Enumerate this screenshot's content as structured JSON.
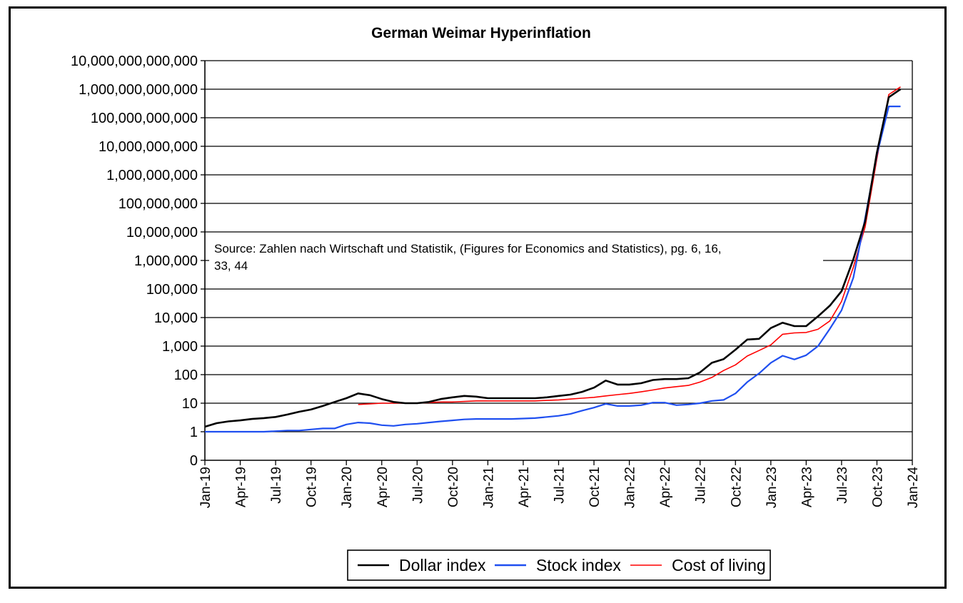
{
  "chart_data": {
    "type": "line",
    "title": "German Weimar Hyperinflation",
    "xlabel": "",
    "ylabel": "",
    "yscale": "log",
    "ylim": [
      0.1,
      10000000000000
    ],
    "xlim": [
      "1919-01",
      "1924-01"
    ],
    "grid": "horizontal",
    "legend_position": "bottom",
    "y_tick_labels": [
      {
        "value": 0.1,
        "label": "0"
      },
      {
        "value": 1,
        "label": "1"
      },
      {
        "value": 10,
        "label": "10"
      },
      {
        "value": 100,
        "label": "100"
      },
      {
        "value": 1000,
        "label": "1,000"
      },
      {
        "value": 10000,
        "label": "10,000"
      },
      {
        "value": 100000,
        "label": "100,000"
      },
      {
        "value": 1000000,
        "label": "1,000,000"
      },
      {
        "value": 10000000,
        "label": "10,000,000"
      },
      {
        "value": 100000000,
        "label": "100,000,000"
      },
      {
        "value": 1000000000,
        "label": "1,000,000,000"
      },
      {
        "value": 10000000000,
        "label": "10,000,000,000"
      },
      {
        "value": 100000000000,
        "label": "100,000,000,000"
      },
      {
        "value": 1000000000000,
        "label": "1,000,000,000,000"
      },
      {
        "value": 10000000000000,
        "label": "10,000,000,000,000"
      }
    ],
    "x_tick_labels": [
      {
        "value": "1919-01",
        "label": "Jan-19"
      },
      {
        "value": "1919-04",
        "label": "Apr-19"
      },
      {
        "value": "1919-07",
        "label": "Jul-19"
      },
      {
        "value": "1919-10",
        "label": "Oct-19"
      },
      {
        "value": "1920-01",
        "label": "Jan-20"
      },
      {
        "value": "1920-04",
        "label": "Apr-20"
      },
      {
        "value": "1920-07",
        "label": "Jul-20"
      },
      {
        "value": "1920-10",
        "label": "Oct-20"
      },
      {
        "value": "1921-01",
        "label": "Jan-21"
      },
      {
        "value": "1921-04",
        "label": "Apr-21"
      },
      {
        "value": "1921-07",
        "label": "Jul-21"
      },
      {
        "value": "1921-10",
        "label": "Oct-21"
      },
      {
        "value": "1922-01",
        "label": "Jan-22"
      },
      {
        "value": "1922-04",
        "label": "Apr-22"
      },
      {
        "value": "1922-07",
        "label": "Jul-22"
      },
      {
        "value": "1922-10",
        "label": "Oct-22"
      },
      {
        "value": "1923-01",
        "label": "Jan-23"
      },
      {
        "value": "1923-04",
        "label": "Apr-23"
      },
      {
        "value": "1923-07",
        "label": "Jul-23"
      },
      {
        "value": "1923-10",
        "label": "Oct-23"
      },
      {
        "value": "1924-01",
        "label": "Jan-24"
      }
    ],
    "annotation": "Source: Zahlen nach Wirtschaft und Statistik,  (Figures for Economics and Statistics), pg. 6, 16, 33, 44",
    "series": [
      {
        "name": "Dollar index",
        "color": "#000000",
        "points": [
          [
            "1919-01",
            1.5
          ],
          [
            "1919-02",
            2
          ],
          [
            "1919-03",
            2.3
          ],
          [
            "1919-04",
            2.5
          ],
          [
            "1919-05",
            2.8
          ],
          [
            "1919-06",
            3.0
          ],
          [
            "1919-07",
            3.3
          ],
          [
            "1919-08",
            4.0
          ],
          [
            "1919-09",
            5.0
          ],
          [
            "1919-10",
            6.0
          ],
          [
            "1919-11",
            8.0
          ],
          [
            "1919-12",
            11
          ],
          [
            "1920-01",
            15
          ],
          [
            "1920-02",
            22
          ],
          [
            "1920-03",
            19
          ],
          [
            "1920-04",
            14
          ],
          [
            "1920-05",
            11
          ],
          [
            "1920-06",
            10
          ],
          [
            "1920-07",
            10
          ],
          [
            "1920-08",
            11
          ],
          [
            "1920-09",
            14
          ],
          [
            "1920-10",
            16
          ],
          [
            "1920-11",
            18
          ],
          [
            "1920-12",
            17
          ],
          [
            "1921-01",
            15
          ],
          [
            "1921-02",
            15
          ],
          [
            "1921-03",
            15
          ],
          [
            "1921-04",
            15
          ],
          [
            "1921-05",
            15
          ],
          [
            "1921-06",
            16
          ],
          [
            "1921-07",
            18
          ],
          [
            "1921-08",
            20
          ],
          [
            "1921-09",
            25
          ],
          [
            "1921-10",
            35
          ],
          [
            "1921-11",
            62
          ],
          [
            "1921-12",
            45
          ],
          [
            "1922-01",
            45
          ],
          [
            "1922-02",
            50
          ],
          [
            "1922-03",
            65
          ],
          [
            "1922-04",
            70
          ],
          [
            "1922-05",
            70
          ],
          [
            "1922-06",
            75
          ],
          [
            "1922-07",
            120
          ],
          [
            "1922-08",
            260
          ],
          [
            "1922-09",
            350
          ],
          [
            "1922-10",
            750
          ],
          [
            "1922-11",
            1700
          ],
          [
            "1922-12",
            1800
          ],
          [
            "1923-01",
            4300
          ],
          [
            "1923-02",
            6600
          ],
          [
            "1923-03",
            5000
          ],
          [
            "1923-04",
            5000
          ],
          [
            "1923-05",
            11000
          ],
          [
            "1923-06",
            26000
          ],
          [
            "1923-07",
            84000
          ],
          [
            "1923-08",
            1100000
          ],
          [
            "1923-09",
            23000000
          ],
          [
            "1923-10",
            6000000000
          ],
          [
            "1923-11",
            522000000000
          ],
          [
            "1923-12",
            1000000000000
          ]
        ]
      },
      {
        "name": "Stock index",
        "color": "#1f4ff0",
        "points": [
          [
            "1919-01",
            1
          ],
          [
            "1919-02",
            1
          ],
          [
            "1919-03",
            1
          ],
          [
            "1919-04",
            1
          ],
          [
            "1919-05",
            1
          ],
          [
            "1919-06",
            1
          ],
          [
            "1919-07",
            1.05
          ],
          [
            "1919-08",
            1.1
          ],
          [
            "1919-09",
            1.1
          ],
          [
            "1919-10",
            1.2
          ],
          [
            "1919-11",
            1.3
          ],
          [
            "1919-12",
            1.3
          ],
          [
            "1920-01",
            1.8
          ],
          [
            "1920-02",
            2.1
          ],
          [
            "1920-03",
            2.0
          ],
          [
            "1920-04",
            1.7
          ],
          [
            "1920-05",
            1.6
          ],
          [
            "1920-06",
            1.8
          ],
          [
            "1920-07",
            1.9
          ],
          [
            "1920-08",
            2.1
          ],
          [
            "1920-09",
            2.3
          ],
          [
            "1920-10",
            2.5
          ],
          [
            "1920-11",
            2.7
          ],
          [
            "1920-12",
            2.8
          ],
          [
            "1921-01",
            2.8
          ],
          [
            "1921-02",
            2.8
          ],
          [
            "1921-03",
            2.8
          ],
          [
            "1921-04",
            2.9
          ],
          [
            "1921-05",
            3.0
          ],
          [
            "1921-06",
            3.3
          ],
          [
            "1921-07",
            3.6
          ],
          [
            "1921-08",
            4.2
          ],
          [
            "1921-09",
            5.5
          ],
          [
            "1921-10",
            7.0
          ],
          [
            "1921-11",
            9.5
          ],
          [
            "1921-12",
            8.0
          ],
          [
            "1922-01",
            8.0
          ],
          [
            "1922-02",
            8.5
          ],
          [
            "1922-03",
            10.5
          ],
          [
            "1922-04",
            10.5
          ],
          [
            "1922-05",
            8.5
          ],
          [
            "1922-06",
            9.0
          ],
          [
            "1922-07",
            10.0
          ],
          [
            "1922-08",
            12
          ],
          [
            "1922-09",
            13
          ],
          [
            "1922-10",
            22
          ],
          [
            "1922-11",
            55
          ],
          [
            "1922-12",
            110
          ],
          [
            "1923-01",
            260
          ],
          [
            "1923-02",
            460
          ],
          [
            "1923-03",
            340
          ],
          [
            "1923-04",
            480
          ],
          [
            "1923-05",
            1000
          ],
          [
            "1923-06",
            4000
          ],
          [
            "1923-07",
            18000
          ],
          [
            "1923-08",
            250000
          ],
          [
            "1923-09",
            30000000
          ],
          [
            "1923-10",
            5000000000
          ],
          [
            "1923-11",
            250000000000
          ],
          [
            "1923-12",
            250000000000
          ]
        ]
      },
      {
        "name": "Cost of living",
        "color": "#ff0000",
        "points": [
          [
            "1920-02",
            9
          ],
          [
            "1920-03",
            9.5
          ],
          [
            "1920-04",
            10
          ],
          [
            "1920-05",
            10
          ],
          [
            "1920-06",
            10
          ],
          [
            "1920-07",
            10
          ],
          [
            "1920-08",
            10.5
          ],
          [
            "1920-09",
            11
          ],
          [
            "1920-10",
            11
          ],
          [
            "1920-11",
            11.5
          ],
          [
            "1920-12",
            12
          ],
          [
            "1921-01",
            12
          ],
          [
            "1921-02",
            12
          ],
          [
            "1921-03",
            12
          ],
          [
            "1921-04",
            12
          ],
          [
            "1921-05",
            12
          ],
          [
            "1921-06",
            12.5
          ],
          [
            "1921-07",
            13
          ],
          [
            "1921-08",
            14
          ],
          [
            "1921-09",
            15
          ],
          [
            "1921-10",
            16
          ],
          [
            "1921-11",
            18
          ],
          [
            "1921-12",
            20
          ],
          [
            "1922-01",
            22
          ],
          [
            "1922-02",
            25
          ],
          [
            "1922-03",
            29
          ],
          [
            "1922-04",
            34
          ],
          [
            "1922-05",
            38
          ],
          [
            "1922-06",
            42
          ],
          [
            "1922-07",
            55
          ],
          [
            "1922-08",
            80
          ],
          [
            "1922-09",
            140
          ],
          [
            "1922-10",
            220
          ],
          [
            "1922-11",
            450
          ],
          [
            "1922-12",
            700
          ],
          [
            "1923-01",
            1100
          ],
          [
            "1923-02",
            2600
          ],
          [
            "1923-03",
            2900
          ],
          [
            "1923-04",
            3000
          ],
          [
            "1923-05",
            3900
          ],
          [
            "1923-06",
            7600
          ],
          [
            "1923-07",
            37000
          ],
          [
            "1923-08",
            580000
          ],
          [
            "1923-09",
            15000000
          ],
          [
            "1923-10",
            3700000000
          ],
          [
            "1923-11",
            650000000000
          ],
          [
            "1923-12",
            1200000000000
          ]
        ]
      }
    ]
  }
}
